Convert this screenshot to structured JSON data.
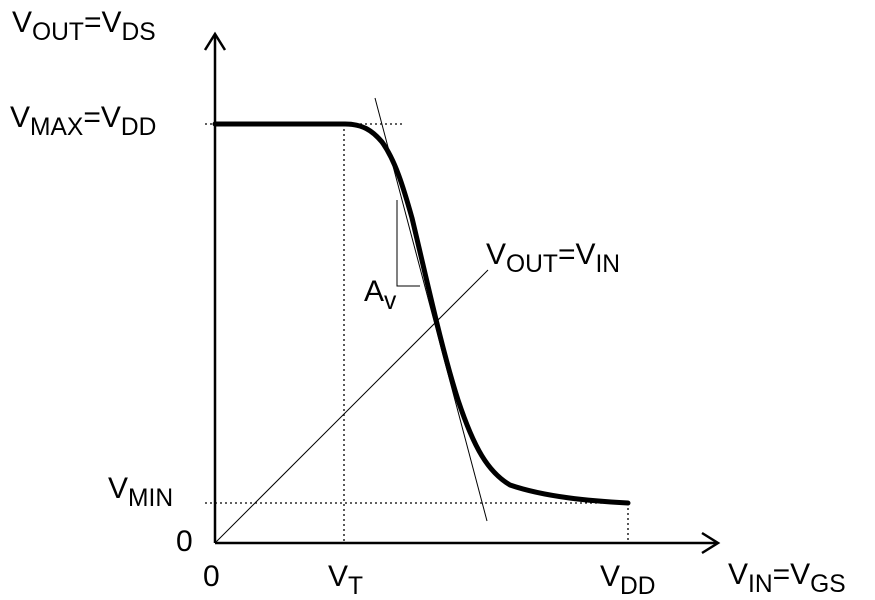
{
  "axes": {
    "y": {
      "prefix": "V",
      "sub1": "OUT",
      "mid": "=V",
      "sub2": "DS"
    },
    "x": {
      "prefix": "V",
      "sub1": "IN",
      "mid": "=V",
      "sub2": "GS"
    }
  },
  "levels": {
    "vmax": {
      "prefix": "V",
      "sub1": "MAX",
      "mid": "=V",
      "sub2": "DD"
    },
    "vmin": {
      "prefix": "V",
      "sub1": "MIN"
    }
  },
  "ticks": {
    "origin_y": "0",
    "origin_x": "0",
    "vt": {
      "prefix": "V",
      "sub1": "T"
    },
    "vdd": {
      "prefix": "V",
      "sub1": "DD"
    }
  },
  "annotations": {
    "unity_line": {
      "prefix": "V",
      "sub1": "OUT",
      "mid": "=V",
      "sub2": "IN"
    },
    "gain": {
      "prefix": "A",
      "sub1": "v"
    }
  },
  "colors": {
    "ink": "#000000"
  }
}
